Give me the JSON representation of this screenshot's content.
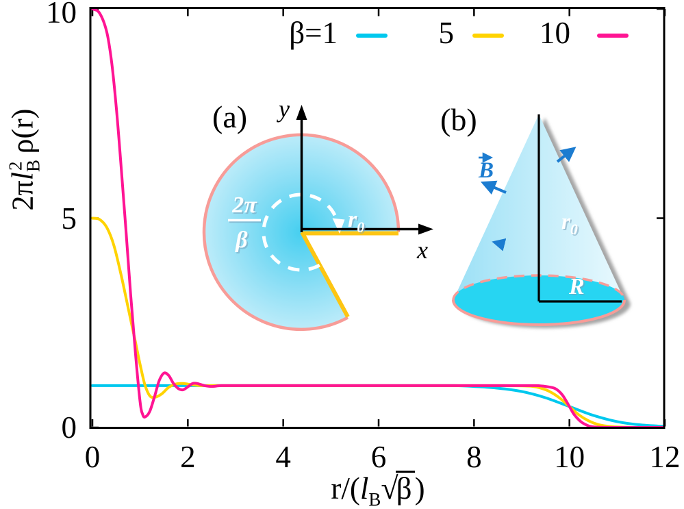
{
  "chart_data": {
    "type": "line",
    "title": "",
    "xlabel": "r/(l_B √β)",
    "ylabel": "2π l_B^2 ρ(r)",
    "xlim": [
      0,
      12
    ],
    "ylim": [
      0,
      10
    ],
    "grid": false,
    "x_ticks": [
      0,
      2,
      4,
      6,
      8,
      10,
      12
    ],
    "x_tick_labels": [
      "0",
      "2",
      "4",
      "6",
      "8",
      "10",
      "12"
    ],
    "y_ticks": [
      0,
      5,
      10
    ],
    "y_tick_labels": [
      "0",
      "5",
      "10"
    ],
    "legend": {
      "position": "top-center-inside",
      "items": [
        {
          "label": "β=1",
          "color": "#00c8ee"
        },
        {
          "label": "5",
          "color": "#ffd300"
        },
        {
          "label": "10",
          "color": "#ff1493"
        }
      ]
    },
    "series": [
      {
        "name": "beta=1",
        "color": "#00c8ee",
        "points": [
          [
            0,
            1
          ],
          [
            1,
            1
          ],
          [
            2,
            1
          ],
          [
            3,
            1
          ],
          [
            4,
            1
          ],
          [
            5,
            1
          ],
          [
            6,
            1
          ],
          [
            7,
            1
          ],
          [
            7.6,
            1
          ],
          [
            8,
            0.98
          ],
          [
            8.5,
            0.94
          ],
          [
            9,
            0.86
          ],
          [
            9.5,
            0.71
          ],
          [
            10,
            0.5
          ],
          [
            10.5,
            0.29
          ],
          [
            11,
            0.14
          ],
          [
            11.5,
            0.06
          ],
          [
            12,
            0.025
          ]
        ]
      },
      {
        "name": "beta=5",
        "color": "#ffd300",
        "points": [
          [
            0,
            5
          ],
          [
            0.15,
            4.97
          ],
          [
            0.3,
            4.78
          ],
          [
            0.45,
            4.35
          ],
          [
            0.6,
            3.65
          ],
          [
            0.75,
            2.85
          ],
          [
            0.9,
            2.05
          ],
          [
            1,
            1.5
          ],
          [
            1.1,
            1.02
          ],
          [
            1.2,
            0.76
          ],
          [
            1.3,
            0.72
          ],
          [
            1.45,
            0.8
          ],
          [
            1.6,
            0.96
          ],
          [
            1.75,
            1.04
          ],
          [
            1.9,
            1.05
          ],
          [
            2.1,
            1.02
          ],
          [
            2.3,
            1
          ],
          [
            2.6,
            1
          ],
          [
            3,
            1
          ],
          [
            4,
            1
          ],
          [
            5,
            1
          ],
          [
            6,
            1
          ],
          [
            7,
            1
          ],
          [
            8,
            1
          ],
          [
            8.6,
            1
          ],
          [
            9,
            0.995
          ],
          [
            9.2,
            0.985
          ],
          [
            9.4,
            0.94
          ],
          [
            9.6,
            0.85
          ],
          [
            9.8,
            0.7
          ],
          [
            10,
            0.5
          ],
          [
            10.2,
            0.3
          ],
          [
            10.4,
            0.16
          ],
          [
            10.6,
            0.07
          ],
          [
            10.8,
            0.03
          ],
          [
            11,
            0.012
          ],
          [
            11.4,
            0
          ],
          [
            12,
            0
          ]
        ]
      },
      {
        "name": "beta=10",
        "color": "#ff1493",
        "points": [
          [
            0,
            10
          ],
          [
            0.15,
            9.9
          ],
          [
            0.3,
            9.45
          ],
          [
            0.4,
            8.75
          ],
          [
            0.5,
            7.65
          ],
          [
            0.6,
            6.25
          ],
          [
            0.7,
            4.75
          ],
          [
            0.8,
            3.2
          ],
          [
            0.9,
            1.8
          ],
          [
            1,
            0.6
          ],
          [
            1.05,
            0.32
          ],
          [
            1.1,
            0.25
          ],
          [
            1.2,
            0.38
          ],
          [
            1.3,
            0.73
          ],
          [
            1.4,
            1.12
          ],
          [
            1.5,
            1.3
          ],
          [
            1.6,
            1.24
          ],
          [
            1.7,
            1.05
          ],
          [
            1.8,
            0.93
          ],
          [
            1.9,
            0.9
          ],
          [
            2,
            0.97
          ],
          [
            2.1,
            1.05
          ],
          [
            2.2,
            1.05
          ],
          [
            2.35,
            1
          ],
          [
            2.5,
            0.98
          ],
          [
            2.7,
            1
          ],
          [
            3,
            1
          ],
          [
            4,
            1
          ],
          [
            5,
            1
          ],
          [
            6,
            1
          ],
          [
            7,
            1
          ],
          [
            8,
            1
          ],
          [
            9,
            1
          ],
          [
            9.3,
            1
          ],
          [
            9.5,
            0.98
          ],
          [
            9.7,
            0.93
          ],
          [
            9.85,
            0.78
          ],
          [
            10,
            0.5
          ],
          [
            10.1,
            0.31
          ],
          [
            10.25,
            0.13
          ],
          [
            10.4,
            0.04
          ],
          [
            10.55,
            0.01
          ],
          [
            10.8,
            0
          ],
          [
            11.2,
            0
          ],
          [
            12,
            0
          ]
        ]
      }
    ]
  },
  "labels": {
    "y_pre": "2π",
    "y_l": "l",
    "y_sub": "B",
    "y_sup": "2",
    "y_post": " ρ(r)",
    "x_pre": "r/(",
    "x_l": "l",
    "x_sub": "B",
    "x_sqrt": "√",
    "x_rad": "β",
    "x_close": ")"
  },
  "inset_a": {
    "tag": "(a)",
    "x_axis_label": "x",
    "y_axis_label": "y",
    "angle_numerator": "2π",
    "angle_denominator": "β",
    "radius_label": "r",
    "radius_sub": "0"
  },
  "inset_b": {
    "tag": "(b)",
    "field_label": "B",
    "slant_label": "r",
    "slant_sub": "0",
    "base_radius_label": "R"
  },
  "colors": {
    "curve_beta_1": "#00c8ee",
    "curve_beta_5": "#ffd300",
    "curve_beta_10": "#ff1493",
    "disk_border": "#f79c98",
    "cut_edge": "#fdc513",
    "base_fill": "#27d5f2",
    "field_arrow": "#1c7cd0",
    "axis": "#000000"
  }
}
